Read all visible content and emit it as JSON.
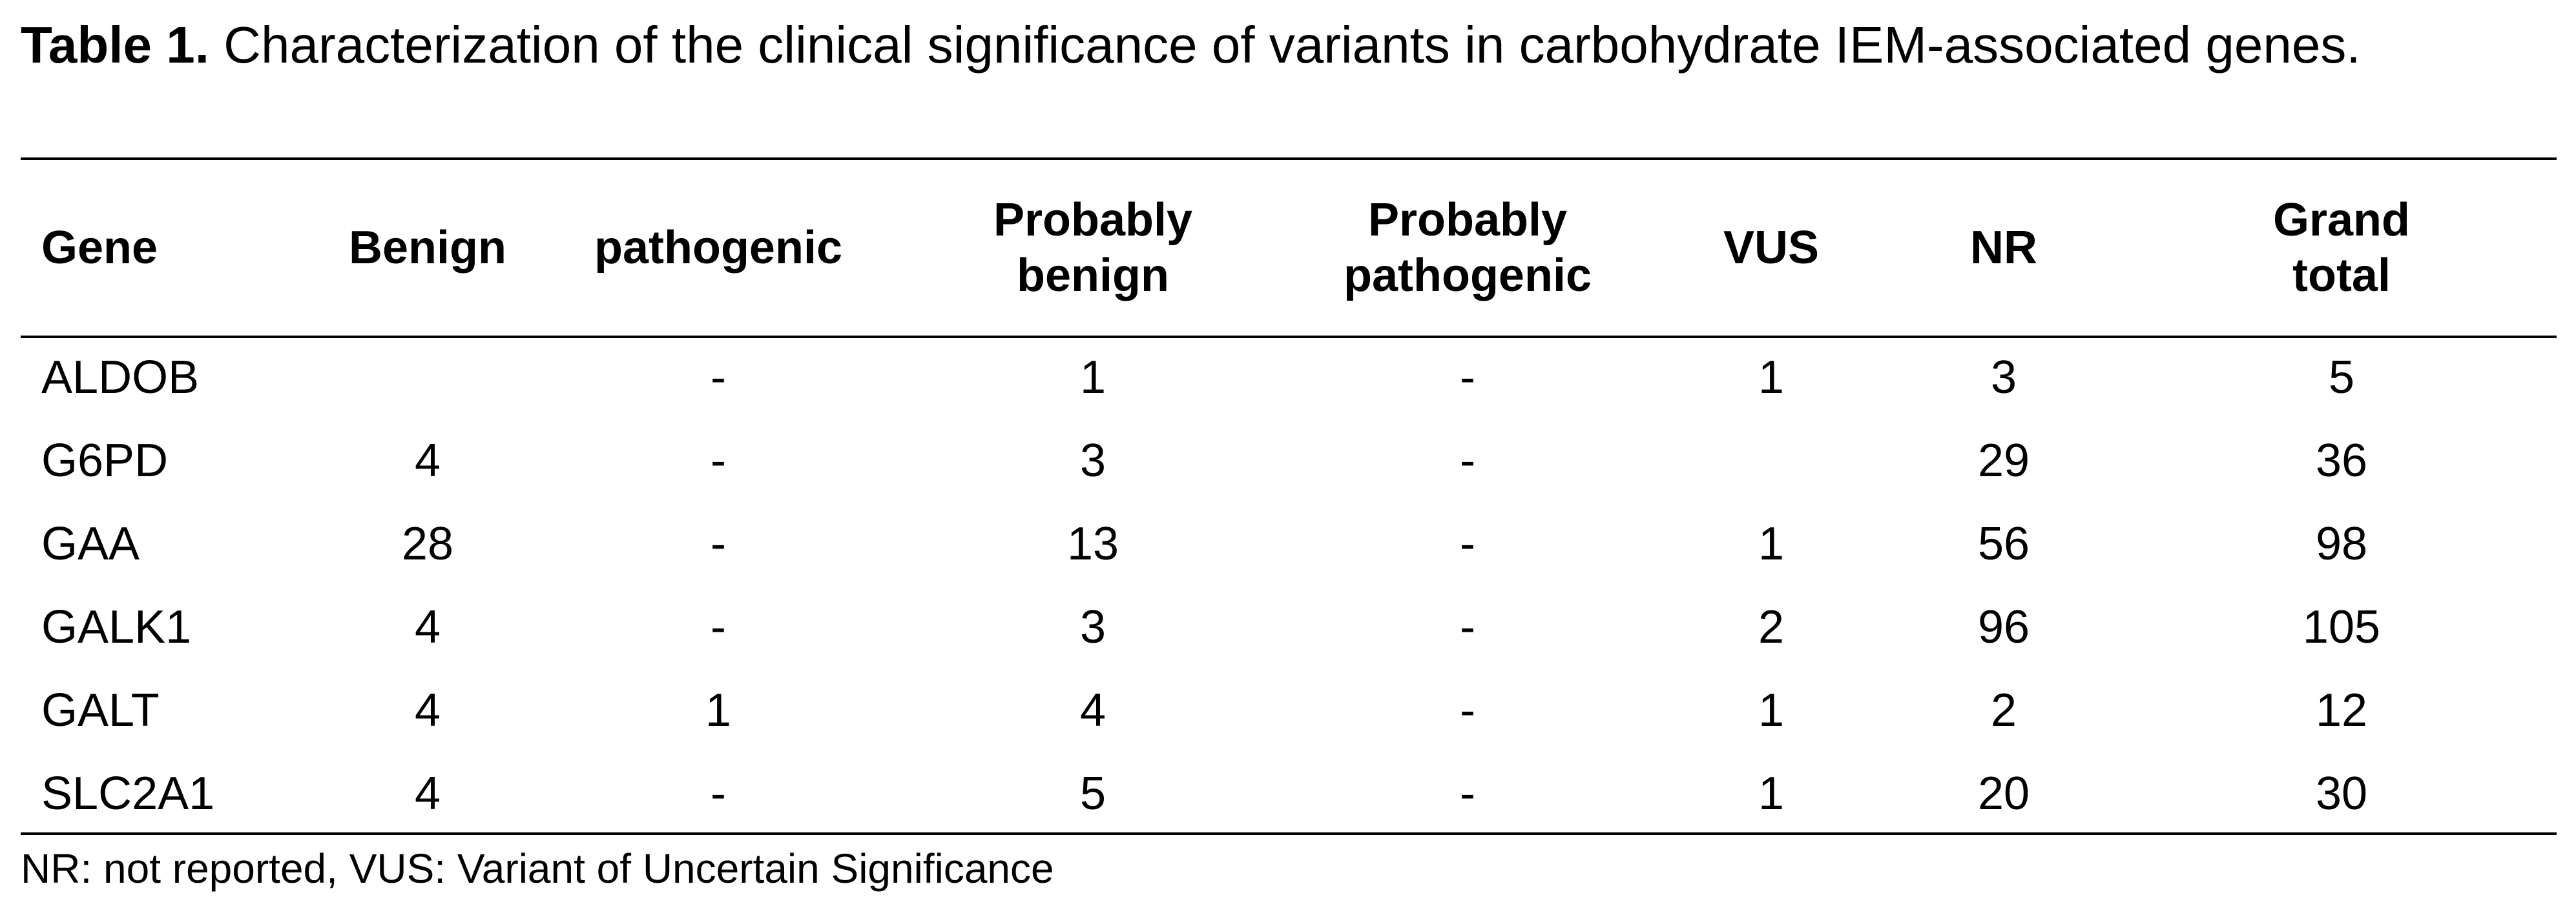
{
  "caption": {
    "label": "Table 1.",
    "text": " Characterization of the clinical significance of variants in carbohydrate IEM-associated genes."
  },
  "table": {
    "headers": [
      "Gene",
      "Benign",
      "pathogenic",
      "Probably\nbenign",
      "Probably\npathogenic",
      "VUS",
      "NR",
      "Grand\ntotal"
    ],
    "rows": [
      [
        "ALDOB",
        "",
        "-",
        "1",
        "-",
        "1",
        "3",
        "5"
      ],
      [
        "G6PD",
        "4",
        "-",
        "3",
        "-",
        "",
        "29",
        "36"
      ],
      [
        "GAA",
        "28",
        "-",
        "13",
        "-",
        "1",
        "56",
        "98"
      ],
      [
        "GALK1",
        "4",
        "-",
        "3",
        "-",
        "2",
        "96",
        "105"
      ],
      [
        "GALT",
        "4",
        "1",
        "4",
        "-",
        "1",
        "2",
        "12"
      ],
      [
        "SLC2A1",
        "4",
        "-",
        "5",
        "-",
        "1",
        "20",
        "30"
      ]
    ]
  },
  "footnote": "NR: not reported, VUS: Variant of Uncertain Significance"
}
